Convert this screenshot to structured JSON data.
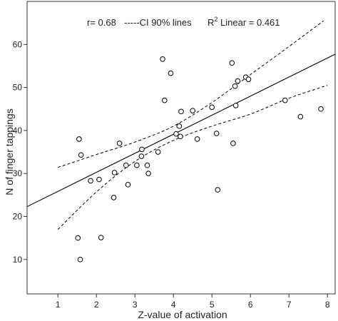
{
  "chart_data": {
    "type": "scatter",
    "xlabel": "Z-value of activation",
    "ylabel": "N of finger tappings",
    "xlim": [
      0.2,
      8.2
    ],
    "ylim": [
      2,
      70
    ],
    "x_ticks": [
      1,
      2,
      3,
      4,
      5,
      6,
      7,
      8
    ],
    "y_ticks": [
      10,
      20,
      30,
      40,
      50,
      60
    ],
    "grid": false,
    "annotations": {
      "r_text": "r= 0.68",
      "ci_text": "-----CI 90% lines",
      "r2_prefix": "R",
      "r2_sup": "2",
      "r2_suffix": " Linear = 0.461"
    },
    "points": [
      {
        "x": 1.52,
        "y": 15.0
      },
      {
        "x": 1.55,
        "y": 38.0
      },
      {
        "x": 1.58,
        "y": 10.0
      },
      {
        "x": 1.6,
        "y": 34.3
      },
      {
        "x": 1.85,
        "y": 28.3
      },
      {
        "x": 2.07,
        "y": 28.6
      },
      {
        "x": 2.12,
        "y": 15.1
      },
      {
        "x": 2.45,
        "y": 24.4
      },
      {
        "x": 2.47,
        "y": 30.2
      },
      {
        "x": 2.6,
        "y": 37.0
      },
      {
        "x": 2.77,
        "y": 31.9
      },
      {
        "x": 2.82,
        "y": 27.4
      },
      {
        "x": 3.05,
        "y": 31.9
      },
      {
        "x": 3.17,
        "y": 34.0
      },
      {
        "x": 3.18,
        "y": 35.6
      },
      {
        "x": 3.32,
        "y": 31.9
      },
      {
        "x": 3.35,
        "y": 30.0
      },
      {
        "x": 3.6,
        "y": 35.0
      },
      {
        "x": 3.72,
        "y": 56.6
      },
      {
        "x": 3.77,
        "y": 47.0
      },
      {
        "x": 3.93,
        "y": 53.3
      },
      {
        "x": 4.07,
        "y": 39.2
      },
      {
        "x": 4.15,
        "y": 41.0
      },
      {
        "x": 4.18,
        "y": 38.6
      },
      {
        "x": 4.2,
        "y": 44.4
      },
      {
        "x": 4.5,
        "y": 44.6
      },
      {
        "x": 4.62,
        "y": 38.0
      },
      {
        "x": 5.0,
        "y": 45.4
      },
      {
        "x": 5.12,
        "y": 39.3
      },
      {
        "x": 5.15,
        "y": 26.2
      },
      {
        "x": 5.52,
        "y": 55.7
      },
      {
        "x": 5.55,
        "y": 37.0
      },
      {
        "x": 5.6,
        "y": 50.3
      },
      {
        "x": 5.62,
        "y": 45.8
      },
      {
        "x": 5.67,
        "y": 51.5
      },
      {
        "x": 5.88,
        "y": 52.4
      },
      {
        "x": 5.95,
        "y": 51.9
      },
      {
        "x": 6.9,
        "y": 47.0
      },
      {
        "x": 7.3,
        "y": 43.2
      },
      {
        "x": 7.83,
        "y": 45.0
      }
    ],
    "fit_line": {
      "slope": 4.43,
      "intercept": 21.4
    },
    "ci_upper": [
      [
        1,
        31.4
      ],
      [
        2,
        34.4
      ],
      [
        3,
        37.3
      ],
      [
        4,
        41.0
      ],
      [
        5,
        46.5
      ],
      [
        6,
        53.0
      ],
      [
        7,
        59.5
      ],
      [
        7.9,
        65.5
      ]
    ],
    "ci_lower": [
      [
        1,
        17.0
      ],
      [
        2,
        25.7
      ],
      [
        3,
        32.8
      ],
      [
        4,
        37.7
      ],
      [
        5,
        41.0
      ],
      [
        6,
        43.8
      ],
      [
        7,
        47.5
      ],
      [
        8,
        50.5
      ]
    ]
  }
}
